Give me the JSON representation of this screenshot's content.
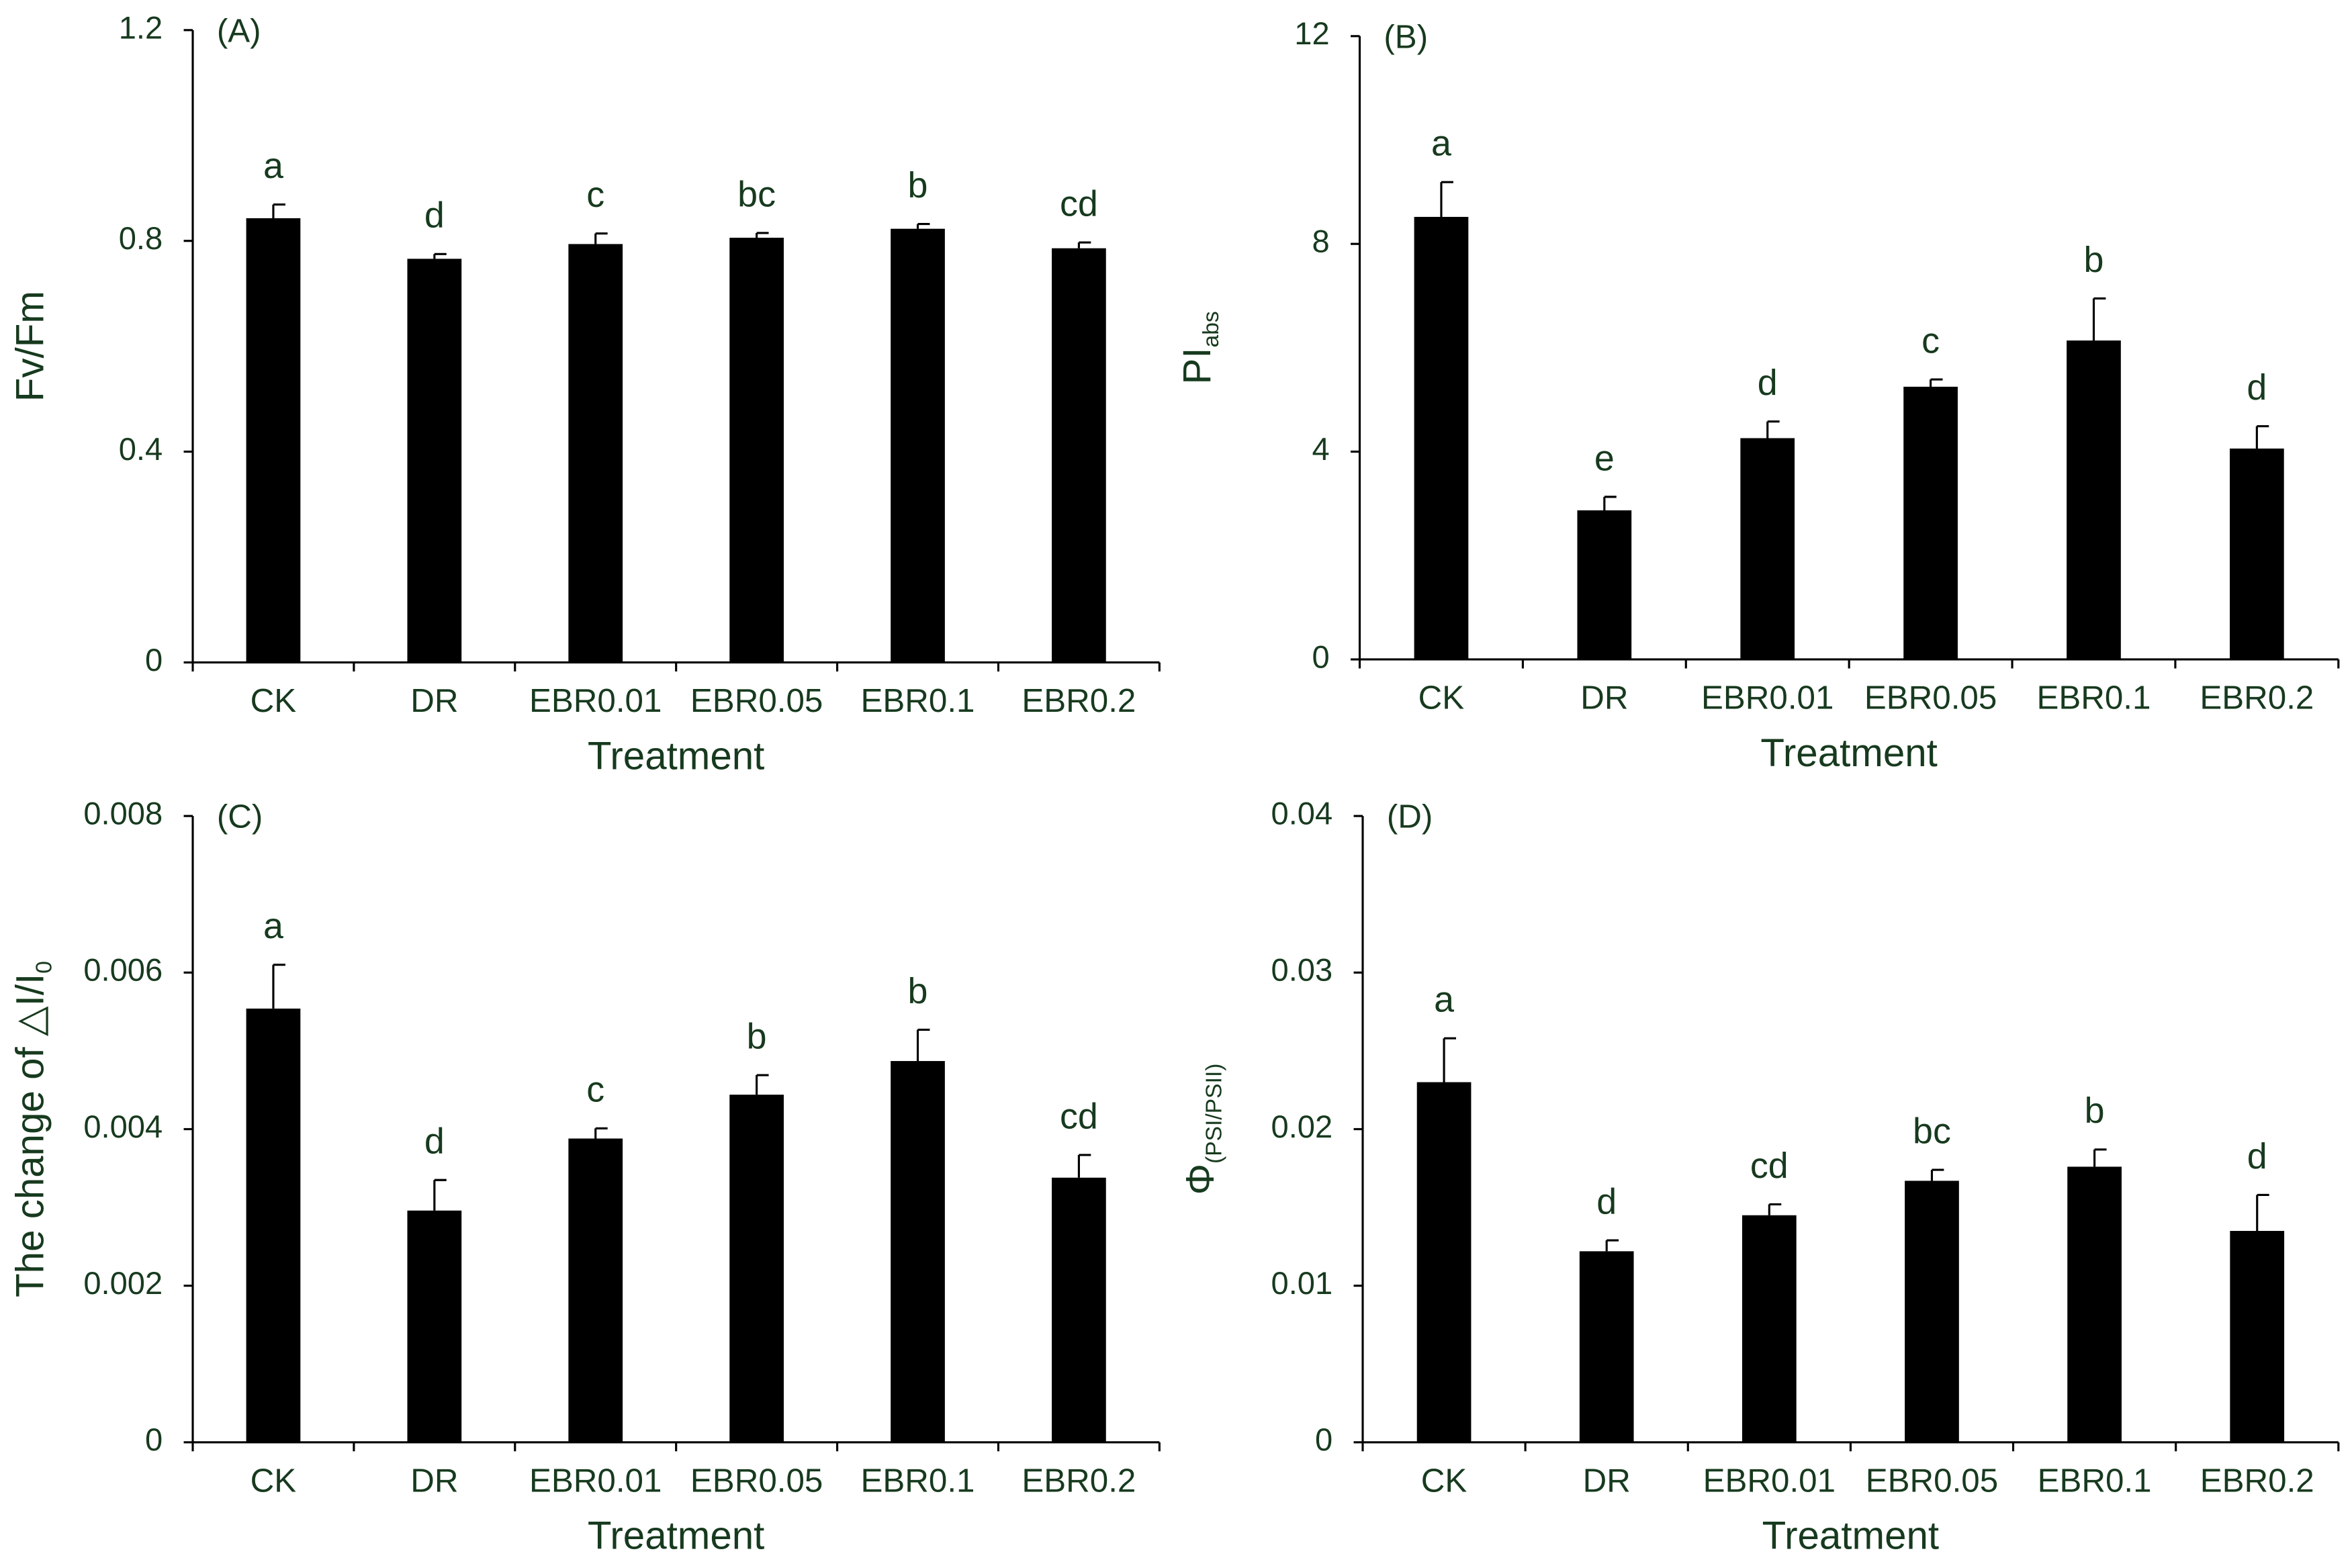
{
  "chart_data": [
    {
      "type": "bar",
      "panel": "(A)",
      "ylabel": "Fv/Fm",
      "xlabel": "Treatment",
      "categories": [
        "CK",
        "DR",
        "EBR0.01",
        "EBR0.05",
        "EBR0.1",
        "EBR0.2"
      ],
      "values": [
        0.843,
        0.766,
        0.794,
        0.806,
        0.823,
        0.786
      ],
      "errors": [
        0.026,
        0.009,
        0.02,
        0.009,
        0.009,
        0.011
      ],
      "letters": [
        "a",
        "d",
        "c",
        "bc",
        "b",
        "cd"
      ],
      "color": "#000000",
      "ylim": [
        0,
        1.2
      ],
      "yticks": [
        0,
        0.4,
        0.8,
        1.2
      ]
    },
    {
      "type": "bar",
      "panel": "(B)",
      "ylabel": "PI",
      "ylabel_sub": "abs",
      "xlabel": "Treatment",
      "categories": [
        "CK",
        "DR",
        "EBR0.01",
        "EBR0.05",
        "EBR0.1",
        "EBR0.2"
      ],
      "values": [
        8.52,
        2.87,
        4.26,
        5.25,
        6.14,
        4.06
      ],
      "errors": [
        0.67,
        0.26,
        0.32,
        0.14,
        0.81,
        0.43
      ],
      "letters": [
        "a",
        "e",
        "d",
        "c",
        "b",
        "d"
      ],
      "color": "#000000",
      "ylim": [
        0,
        12
      ],
      "yticks": [
        0,
        4,
        8,
        12
      ]
    },
    {
      "type": "bar",
      "panel": "(C)",
      "ylabel": "The change of △I/I",
      "ylabel_sub": "0",
      "xlabel": "Treatment",
      "categories": [
        "CK",
        "DR",
        "EBR0.01",
        "EBR0.05",
        "EBR0.1",
        "EBR0.2"
      ],
      "values": [
        0.00554,
        0.00296,
        0.00388,
        0.00444,
        0.00487,
        0.00338
      ],
      "errors": [
        0.00056,
        0.00039,
        0.00013,
        0.00025,
        0.0004,
        0.00029
      ],
      "letters": [
        "a",
        "d",
        "c",
        "b",
        "b",
        "cd"
      ],
      "color": "#000000",
      "ylim": [
        0,
        0.008
      ],
      "yticks": [
        0,
        0.002,
        0.004,
        0.006,
        0.008
      ]
    },
    {
      "type": "bar",
      "panel": "(D)",
      "ylabel": "Φ",
      "ylabel_sub": "(PSI/PSII)",
      "xlabel": "Treatment",
      "categories": [
        "CK",
        "DR",
        "EBR0.01",
        "EBR0.05",
        "EBR0.1",
        "EBR0.2"
      ],
      "values": [
        0.023,
        0.0122,
        0.0145,
        0.0167,
        0.0176,
        0.0135
      ],
      "errors": [
        0.0028,
        0.0007,
        0.0007,
        0.0007,
        0.0011,
        0.0023
      ],
      "letters": [
        "a",
        "d",
        "cd",
        "bc",
        "b",
        "d"
      ],
      "color": "#000000",
      "ylim": [
        0,
        0.04
      ],
      "yticks": [
        0,
        0.01,
        0.02,
        0.03,
        0.04
      ]
    }
  ]
}
